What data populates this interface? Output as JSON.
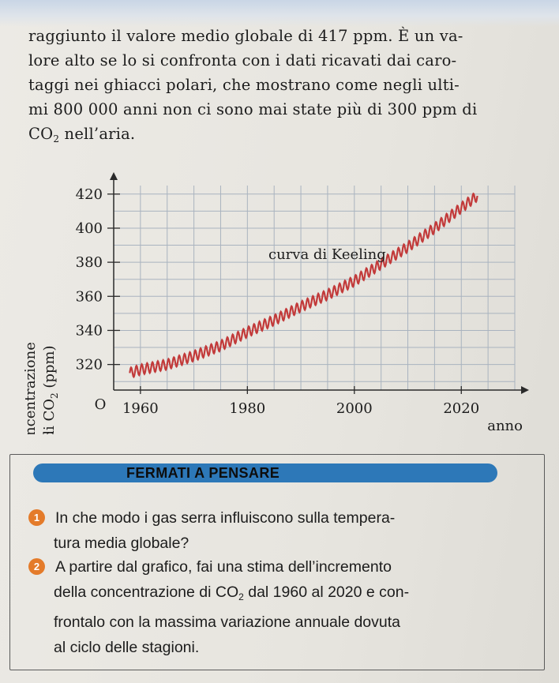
{
  "intro": {
    "lines": [
      "raggiunto il valore medio globale di 417 ppm. È un va-",
      "lore alto se lo si confronta con i dati ricavati dai caro-",
      "taggi nei ghiacci polari, che mostrano come negli ulti-",
      "mi 800 000 anni non ci sono mai state più di 300 ppm di"
    ],
    "last_line_pre": "CO",
    "last_line_sub": "2",
    "last_line_post": " nell’aria."
  },
  "chart_data": {
    "type": "line",
    "title": "",
    "ylabel_line1": "concentrazione",
    "ylabel_line2_pre": "di CO",
    "ylabel_line2_sub": "2",
    "ylabel_line2_post": " (ppm)",
    "xlabel": "anno",
    "origin_label": "O",
    "annotation": "curva di Keeling",
    "x_ticks": [
      1960,
      1980,
      2000,
      2020
    ],
    "y_ticks": [
      320,
      340,
      360,
      380,
      400,
      420
    ],
    "xlim": [
      1955,
      2030
    ],
    "ylim": [
      305,
      425
    ],
    "grid": true,
    "series_color": "#c23a3a",
    "seasonal_amplitude_ppm": 3,
    "series": [
      {
        "name": "",
        "x": [
          1958,
          1960,
          1965,
          1970,
          1975,
          1980,
          1985,
          1990,
          1995,
          2000,
          2005,
          2010,
          2015,
          2020,
          2023
        ],
        "values": [
          315,
          317,
          320,
          325,
          331,
          339,
          346,
          354,
          361,
          369,
          379,
          389,
          400,
          412,
          419
        ]
      }
    ]
  },
  "box": {
    "title": "FERMATI A PENSARE",
    "accent_color": "#2d78b8",
    "number_color": "#e47b2a",
    "q1": {
      "number": "1",
      "lines": [
        "In che modo i gas serra influiscono sulla tempera-",
        "tura media globale?"
      ]
    },
    "q2": {
      "number": "2",
      "line1": "A partire dal grafico, fai una stima dell’incremento",
      "line2_pre": "della concentrazione di CO",
      "line2_sub": "2",
      "line2_post": " dal 1960 al 2020 e con-",
      "line3": "frontalo con la massima variazione annuale dovuta",
      "line4": "al ciclo delle stagioni."
    }
  }
}
